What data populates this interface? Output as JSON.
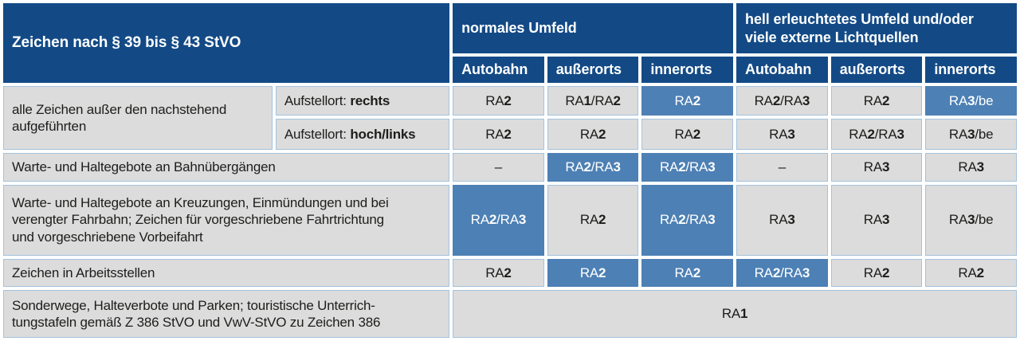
{
  "colors": {
    "header_blue": "#134a86",
    "highlight_blue": "#4d80b4",
    "cell_gray": "#dcdcdc",
    "hairline_blue": "#a4c2dd",
    "text_dark": "#1d1d1b",
    "text_white": "#ffffff"
  },
  "header": {
    "title": "Zeichen nach § 39 bis § 43 StVO",
    "groups": [
      {
        "label": "normales Umfeld"
      },
      {
        "label": "hell erleuchtetes Umfeld und/oder\nviele externe Lichtquellen"
      }
    ],
    "columns": [
      "Autobahn",
      "außerorts",
      "innerorts",
      "Autobahn",
      "außerorts",
      "innerorts"
    ]
  },
  "rows": [
    {
      "label": "alle Zeichen außer den nachstehend\naufgeführten",
      "sub": [
        {
          "prefix": "Aufstellort: ",
          "place": "rechts",
          "values": [
            {
              "v": "RA2"
            },
            {
              "v": "RA1/RA2"
            },
            {
              "v": "RA2",
              "hl": true
            },
            {
              "v": "RA2/RA3"
            },
            {
              "v": "RA2"
            },
            {
              "v": "RA3/be",
              "hl": true
            }
          ]
        },
        {
          "prefix": "Aufstellort: ",
          "place": "hoch/links",
          "values": [
            {
              "v": "RA2"
            },
            {
              "v": "RA2"
            },
            {
              "v": "RA2"
            },
            {
              "v": "RA3"
            },
            {
              "v": "RA2/RA3"
            },
            {
              "v": "RA3/be"
            }
          ]
        }
      ]
    },
    {
      "label": "Warte- und Haltegebote an Bahnübergängen",
      "values": [
        {
          "v": "–"
        },
        {
          "v": "RA2/RA3",
          "hl": true
        },
        {
          "v": "RA2/RA3",
          "hl": true
        },
        {
          "v": "–"
        },
        {
          "v": "RA3"
        },
        {
          "v": "RA3"
        }
      ]
    },
    {
      "label": "Warte- und Haltegebote an Kreuzungen, Einmündungen und bei\nverengter Fahrbahn; Zeichen für vorgeschriebene Fahrtrichtung\nund vorgeschriebene Vorbeifahrt",
      "values": [
        {
          "v": "RA2/RA3",
          "hl": true
        },
        {
          "v": "RA2"
        },
        {
          "v": "RA2/RA3",
          "hl": true
        },
        {
          "v": "RA3"
        },
        {
          "v": "RA3"
        },
        {
          "v": "RA3/be"
        }
      ]
    },
    {
      "label": "Zeichen in Arbeitsstellen",
      "values": [
        {
          "v": "RA2"
        },
        {
          "v": "RA2",
          "hl": true
        },
        {
          "v": "RA2",
          "hl": true
        },
        {
          "v": "RA2/RA3",
          "hl": true
        },
        {
          "v": "RA2"
        },
        {
          "v": "RA2"
        }
      ]
    },
    {
      "label": "Sonderwege, Halteverbote und Parken; touristische Unterrich-\ntungstafeln gemäß Z 386 StVO und VwV-StVO zu Zeichen 386",
      "merged_value": "RA1"
    }
  ]
}
